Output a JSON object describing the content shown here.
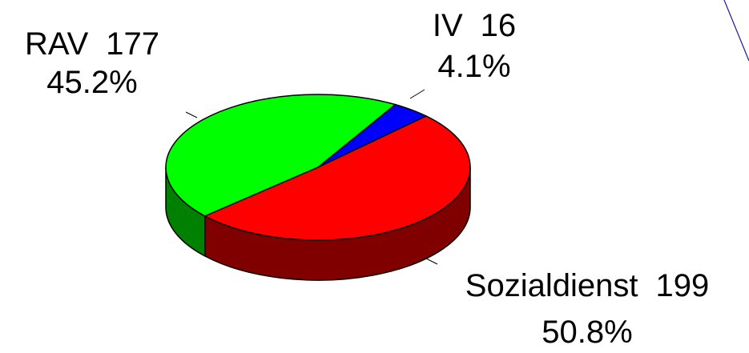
{
  "chart_data": {
    "type": "pie",
    "categories": [
      "RAV",
      "IV",
      "Sozialdienst"
    ],
    "values": [
      177,
      16,
      199
    ],
    "percent_labels": [
      "45.2%",
      "4.1%",
      "50.8%"
    ],
    "colors": [
      "#00ff00",
      "#0000ff",
      "#ff0000"
    ],
    "three_d": true
  }
}
